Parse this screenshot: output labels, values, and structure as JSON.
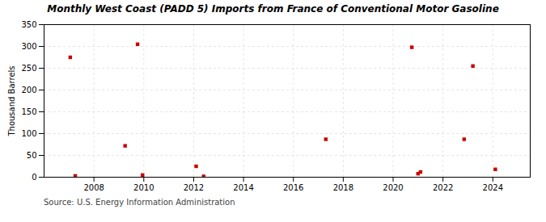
{
  "chart_data": {
    "type": "scatter",
    "title": "Monthly West Coast (PADD 5) Imports from France of Conventional Motor Gasoline",
    "ylabel": "Thousand Barrels",
    "source": "Source: U.S. Energy Information Administration",
    "x": [
      2007.05,
      2007.25,
      2009.25,
      2009.75,
      2009.95,
      2012.1,
      2012.4,
      2017.3,
      2020.75,
      2021.0,
      2021.1,
      2022.85,
      2023.2,
      2024.1
    ],
    "values": [
      275,
      3,
      72,
      305,
      5,
      25,
      2,
      87,
      298,
      8,
      12,
      87,
      255,
      18
    ],
    "color": "#cc0000",
    "marker": "square",
    "xlim": [
      2006.0,
      2025.5
    ],
    "xticks": [
      2008,
      2010,
      2012,
      2014,
      2016,
      2018,
      2020,
      2022,
      2024
    ],
    "ylim": [
      0,
      350
    ],
    "yticks": [
      0,
      50,
      100,
      150,
      200,
      250,
      300,
      350
    ],
    "grid": true
  }
}
